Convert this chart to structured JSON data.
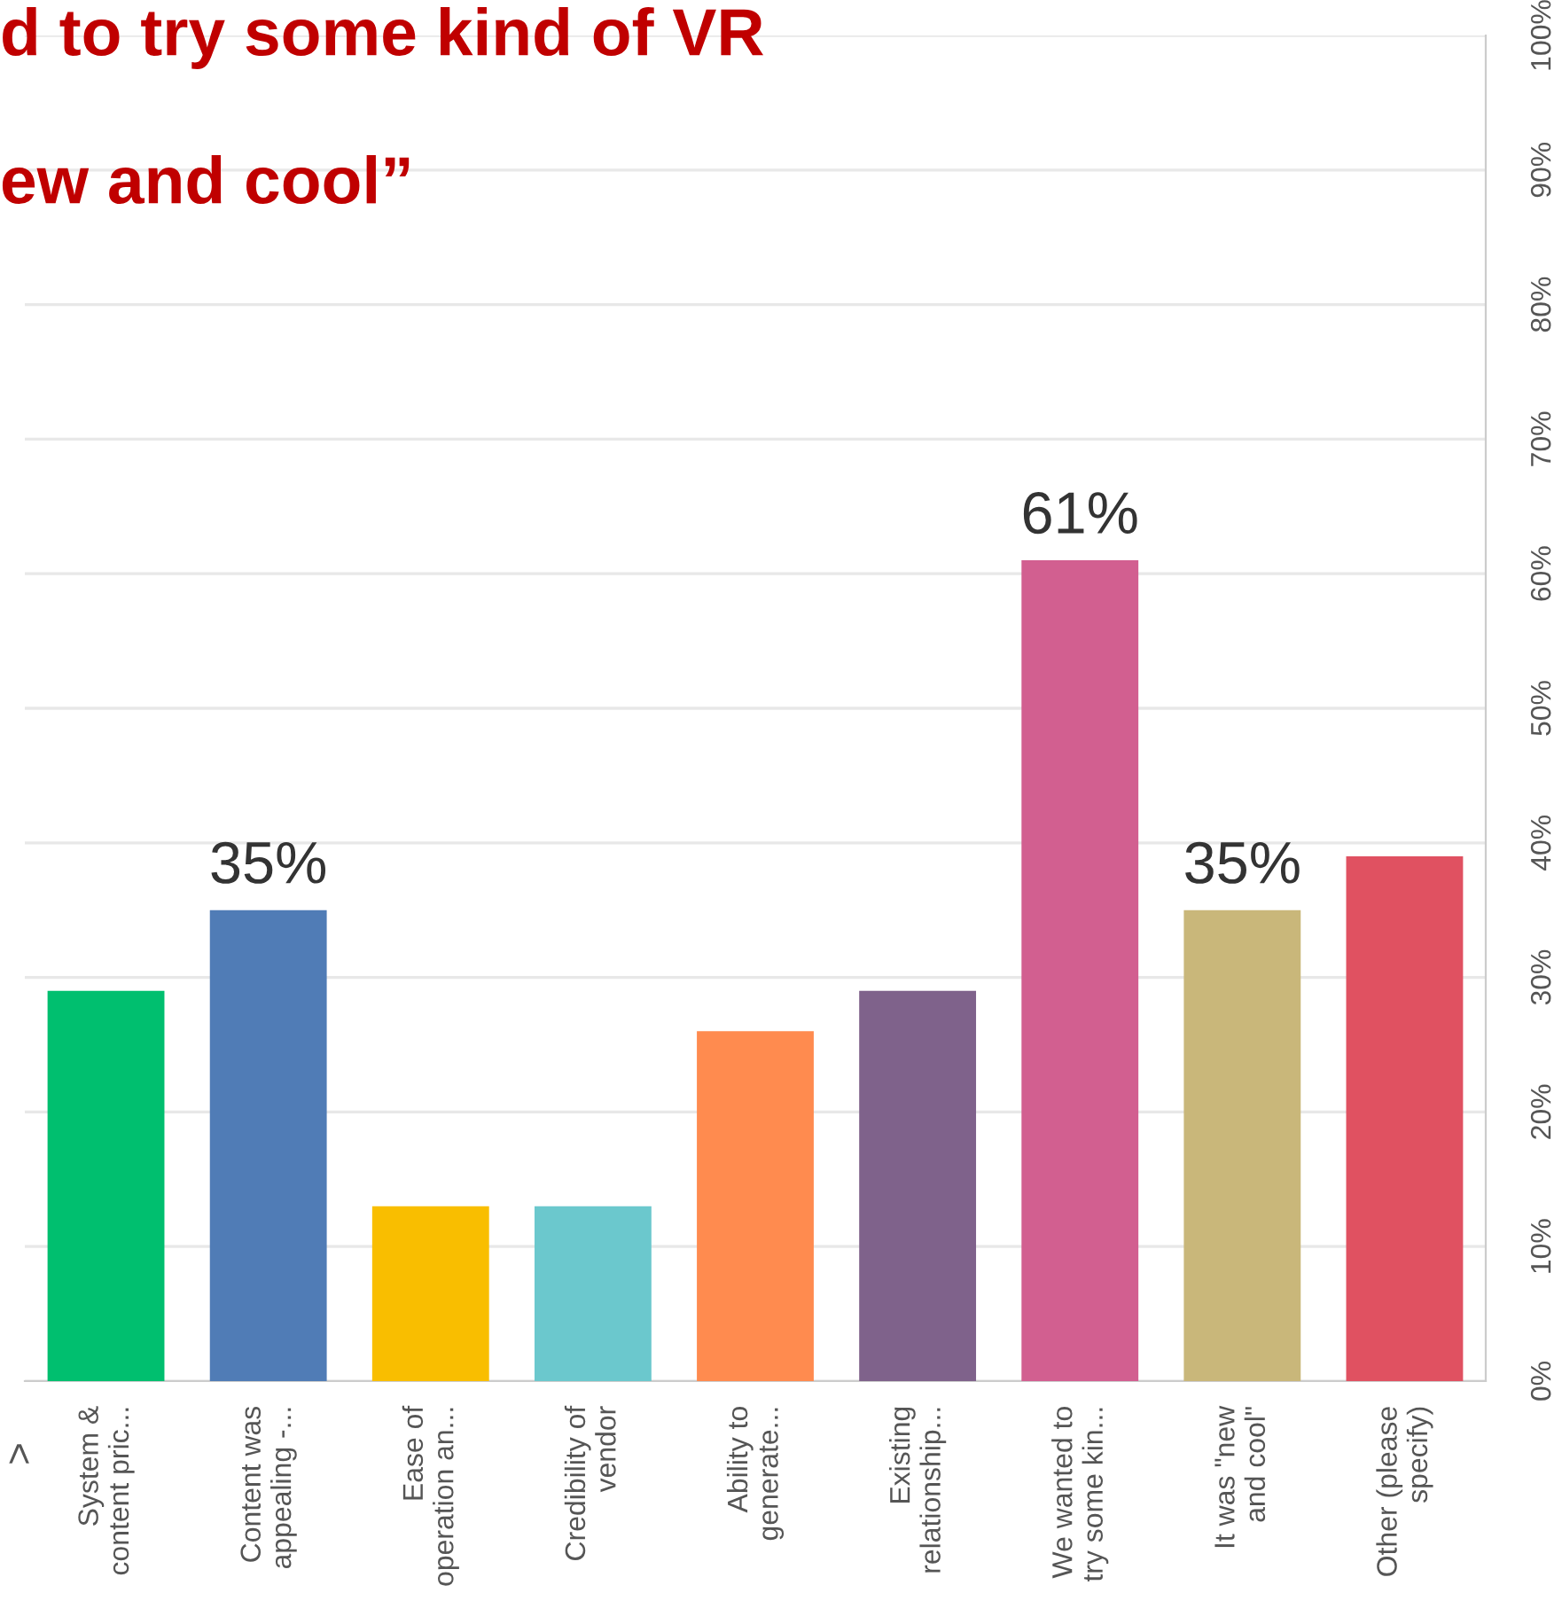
{
  "chart_data": {
    "type": "bar",
    "title": "d to try some kind of VR\n\new and cool”",
    "categories": [
      "System &\ncontent pric...",
      "Content was\nappealing -...",
      "Ease of\noperation an...",
      "Credibility of\nvendor",
      "Ability to\ngenerate...",
      "Existing\nrelationship...",
      "We wanted to\ntry some kin...",
      "It was \"new\nand cool\"",
      "Other (please\nspecify)"
    ],
    "values": [
      29,
      35,
      13,
      13,
      26,
      29,
      61,
      35,
      39
    ],
    "colors": [
      "#00bf6f",
      "#507cb6",
      "#f9be00",
      "#6bc8cd",
      "#ff8b4f",
      "#7f628b",
      "#d25f90",
      "#c9b77a",
      "#e05161"
    ],
    "value_labels": [
      null,
      "35%",
      null,
      null,
      null,
      null,
      "61%",
      "35%",
      null
    ],
    "ylim": [
      0,
      100
    ],
    "yticks": [
      {
        "value": 0,
        "label": "0%"
      },
      {
        "value": 10,
        "label": "10%"
      },
      {
        "value": 20,
        "label": "20%"
      },
      {
        "value": 30,
        "label": "30%"
      },
      {
        "value": 40,
        "label": "40%"
      },
      {
        "value": 50,
        "label": "50%"
      },
      {
        "value": 60,
        "label": "60%"
      },
      {
        "value": 70,
        "label": "70%"
      },
      {
        "value": 80,
        "label": "80%"
      },
      {
        "value": 90,
        "label": "90%"
      },
      {
        "value": 100,
        "label": "100%"
      }
    ],
    "grid": "y",
    "annotations": [
      ">"
    ]
  }
}
